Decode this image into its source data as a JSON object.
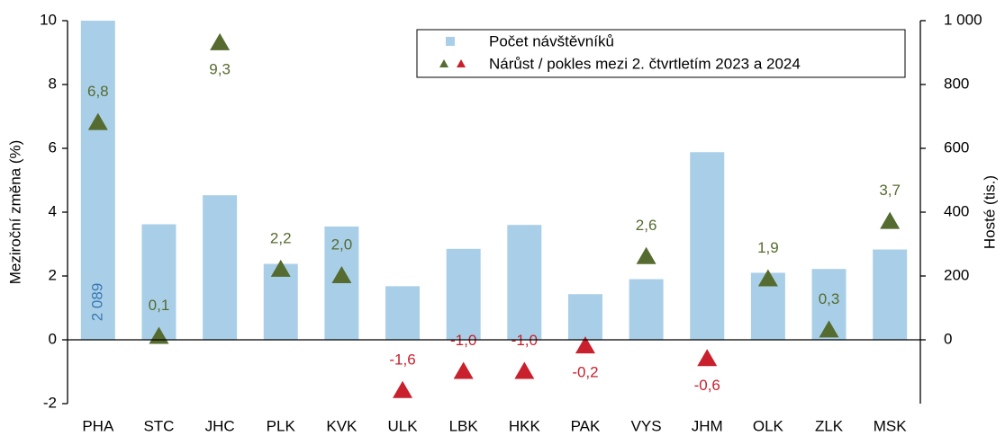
{
  "chart_data": {
    "type": "bar-triangle",
    "categories": [
      "PHA",
      "STC",
      "JHC",
      "PLK",
      "KVK",
      "ULK",
      "LBK",
      "HKK",
      "PAK",
      "VYS",
      "JHM",
      "OLK",
      "ZLK",
      "MSK"
    ],
    "series": [
      {
        "name": "Počet návštěvníků",
        "color": "#a9cfe8",
        "axis": "y2",
        "kind": "bar",
        "values": [
          2089,
          362,
          453,
          238,
          355,
          168,
          285,
          360,
          143,
          190,
          588,
          210,
          222,
          283
        ],
        "value_labels": [
          "2 089",
          null,
          null,
          null,
          null,
          null,
          null,
          null,
          null,
          null,
          null,
          null,
          null,
          null
        ],
        "label_color": "#3a78b0"
      },
      {
        "name": "Nárůst / pokles mezi 2. čtvrtletím 2023 a 2024",
        "kind": "triangle",
        "positive_color": "#556b2f",
        "negative_color": "#c8202c",
        "values": [
          6.8,
          0.1,
          9.3,
          2.2,
          2.0,
          -1.6,
          -1.0,
          -1.0,
          -0.2,
          2.6,
          -0.6,
          1.9,
          0.3,
          3.7
        ],
        "value_labels": [
          "6,8",
          "0,1",
          "9,3",
          "2,2",
          "2,0",
          "-1,6",
          "-1,0",
          "-1,0",
          "-0,2",
          "2,6",
          "-0,6",
          "1,9",
          "0,3",
          "3,7"
        ]
      }
    ],
    "ylabel": "Meziroční změna (%)",
    "y2label": "Hosté (tis.)",
    "ylim": [
      -2,
      10
    ],
    "yticks": [
      -2,
      0,
      2,
      4,
      6,
      8,
      10
    ],
    "y2lim": [
      -200,
      1000
    ],
    "y2ticks": [
      0,
      200,
      400,
      600,
      800,
      {
        "value": 1000,
        "label": "1 000"
      }
    ],
    "legend": "top-right"
  }
}
